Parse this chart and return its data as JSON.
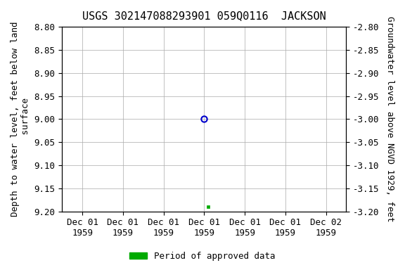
{
  "title": "USGS 302147088293901 059Q0116  JACKSON",
  "ylabel_left": "Depth to water level, feet below land\n surface",
  "ylabel_right": "Groundwater level above NGVD 1929, feet",
  "ylim_left": [
    9.2,
    8.8
  ],
  "ylim_right": [
    -3.2,
    -2.8
  ],
  "yticks_left": [
    8.8,
    8.85,
    8.9,
    8.95,
    9.0,
    9.05,
    9.1,
    9.15,
    9.2
  ],
  "yticks_right": [
    -2.8,
    -2.85,
    -2.9,
    -2.95,
    -3.0,
    -3.05,
    -3.1,
    -3.15,
    -3.2
  ],
  "xtick_labels": [
    "Dec 01\n1959",
    "Dec 01\n1959",
    "Dec 01\n1959",
    "Dec 01\n1959",
    "Dec 01\n1959",
    "Dec 01\n1959",
    "Dec 02\n1959"
  ],
  "xtick_positions": [
    0,
    1,
    2,
    3,
    4,
    5,
    6
  ],
  "xlim": [
    -0.5,
    6.5
  ],
  "data_open_x": 3.0,
  "data_open_y": 9.0,
  "data_approved_x": 3.1,
  "data_approved_y": 9.19,
  "approved_color": "#00aa00",
  "open_circle_color": "#0000cc",
  "background_color": "#ffffff",
  "grid_color": "#aaaaaa",
  "title_fontsize": 11,
  "axis_label_fontsize": 9,
  "tick_fontsize": 9,
  "legend_label": "Period of approved data"
}
